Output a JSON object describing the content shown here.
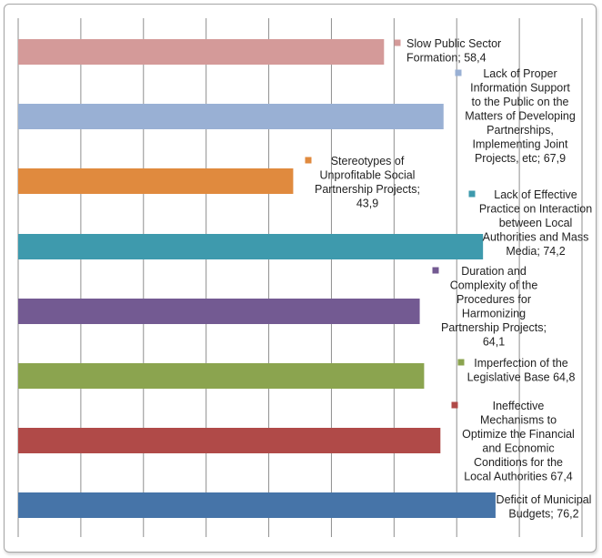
{
  "chart_data": {
    "type": "bar",
    "orientation": "horizontal",
    "grid": true,
    "xlim": [
      0,
      90
    ],
    "series": [
      {
        "label": "Slow Public Sector Formation; 58,4",
        "label_lines": [
          "Slow Public Sector",
          "Formation; 58,4"
        ],
        "value": 58.4,
        "color": "#d49a99"
      },
      {
        "label": "Lack of Proper Information Support to the Public on the Matters of Developing Partnerships, Implementing Joint Projects, etc; 67,9",
        "label_lines": [
          "Lack of Proper",
          "Information Support",
          "to the Public on the",
          "Matters of Developing",
          "Partnerships,",
          "Implementing Joint",
          "Projects, etc; 67,9"
        ],
        "value": 67.9,
        "color": "#99b0d4"
      },
      {
        "label": "Stereotypes of Unprofitable Social Partnership Projects; 43,9",
        "label_lines": [
          "Stereotypes of",
          "Unprofitable Social",
          "Partnership Projects;",
          "43,9"
        ],
        "value": 43.9,
        "color": "#e08a3e"
      },
      {
        "label": "Lack of Effective Practice on Interaction between Local Authorities and Mass Media; 74,2",
        "label_lines": [
          "Lack of Effective",
          "Practice on Interaction",
          "between Local",
          "Authorities and Mass",
          "Media; 74,2"
        ],
        "value": 74.2,
        "color": "#3e9aad"
      },
      {
        "label": "Duration and Complexity of the Procedures for Harmonizing Partnership Projects; 64,1",
        "label_lines": [
          "Duration and",
          "Complexity of the",
          "Procedures for",
          "Harmonizing",
          "Partnership Projects;",
          "64,1"
        ],
        "value": 64.1,
        "color": "#735a92"
      },
      {
        "label": "Imperfection of the Legislative Base 64,8",
        "label_lines": [
          "Imperfection of the",
          "Legislative Base 64,8"
        ],
        "value": 64.8,
        "color": "#8ba44f"
      },
      {
        "label": "Ineffective Mechanisms to Optimize the Financial and Economic Conditions for the Local Authorities 67,4",
        "label_lines": [
          "Ineffective",
          "Mechanisms to",
          "Optimize the Financial",
          "and Economic",
          "Conditions for the",
          "Local Authorities 67,4"
        ],
        "value": 67.4,
        "color": "#b04a48"
      },
      {
        "label": "Deficit of Municipal Budgets; 76,2",
        "label_lines": [
          "Deficit of Municipal",
          "Budgets; 76,2"
        ],
        "value": 76.2,
        "color": "#4674a8"
      }
    ]
  }
}
